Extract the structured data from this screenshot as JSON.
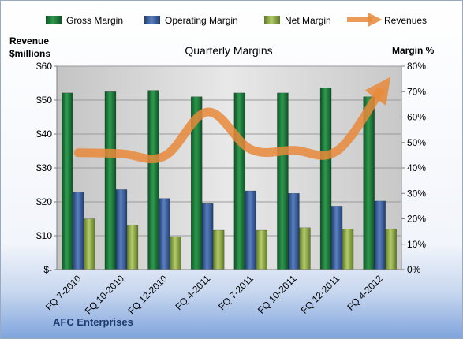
{
  "chart_data": {
    "type": "bar",
    "title": "Quarterly Margins",
    "left_axis_label_line1": "Revenue",
    "left_axis_label_line2": "$millions",
    "right_axis_label": "Margin %",
    "left_ylim": [
      0,
      60
    ],
    "right_ylim": [
      0,
      80
    ],
    "left_ticks": [
      0,
      10,
      20,
      30,
      40,
      50,
      60
    ],
    "left_tick_labels": [
      "$-",
      "$10",
      "$20",
      "$30",
      "$40",
      "$50",
      "$60"
    ],
    "right_ticks": [
      0,
      10,
      20,
      30,
      40,
      50,
      60,
      70,
      80
    ],
    "right_tick_labels": [
      "0%",
      "10%",
      "20%",
      "30%",
      "40%",
      "50%",
      "60%",
      "70%",
      "80%"
    ],
    "categories": [
      "FQ 7-2010",
      "FQ 10-2010",
      "FQ 12-2010",
      "FQ 4-2011",
      "FQ 7-2011",
      "FQ 10-2011",
      "FQ 12-2011",
      "FQ 4-2012"
    ],
    "series": [
      {
        "name": "Gross Margin",
        "type": "bar",
        "axis": "right",
        "color": "#1e7a3c",
        "values": [
          69.5,
          70.0,
          70.5,
          68.0,
          69.5,
          69.5,
          71.5,
          68.0
        ]
      },
      {
        "name": "Operating Margin",
        "type": "bar",
        "axis": "right",
        "color": "#3a5f9f",
        "values": [
          30.5,
          31.5,
          28.0,
          26.0,
          31.0,
          30.0,
          25.0,
          27.0
        ]
      },
      {
        "name": "Net Margin",
        "type": "bar",
        "axis": "right",
        "color": "#8fab45",
        "values": [
          20.0,
          17.5,
          13.0,
          15.5,
          15.5,
          16.5,
          16.0,
          16.0
        ]
      },
      {
        "name": "Revenues",
        "type": "line",
        "axis": "left",
        "color": "#e88a3a",
        "values": [
          34.5,
          34.2,
          33.5,
          46.5,
          35.5,
          35.2,
          35.0,
          52.5
        ]
      }
    ],
    "grid": true,
    "legend_position": "top"
  },
  "footer": {
    "company": "AFC Enterprises"
  }
}
